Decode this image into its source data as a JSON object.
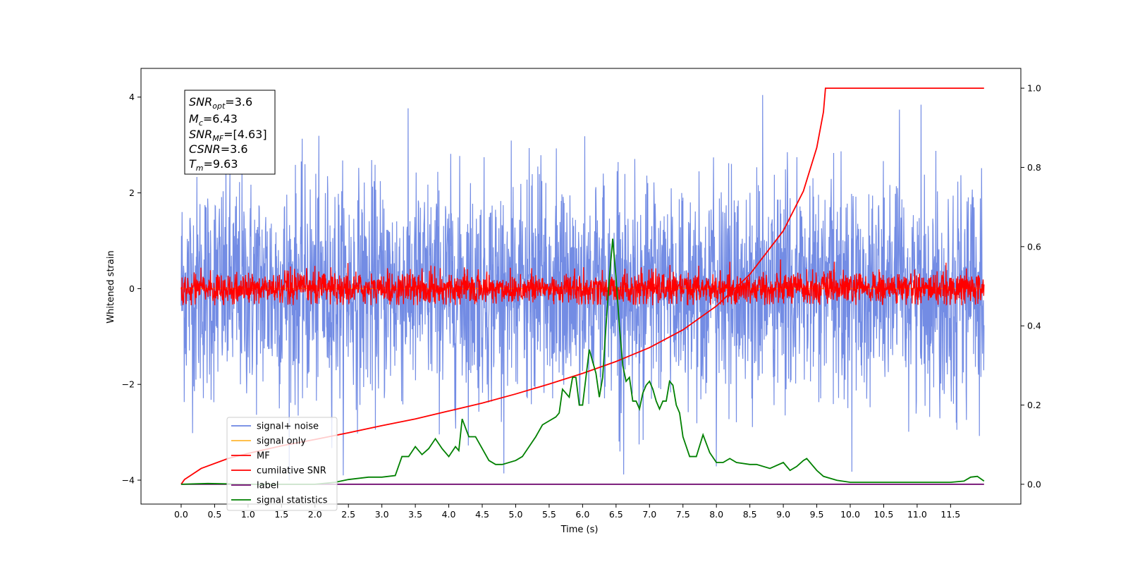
{
  "chart_data": {
    "type": "line",
    "title": "",
    "xlabel": "Time (s)",
    "ylabel": "Whitened strain",
    "xlim": [
      -0.6,
      12.55
    ],
    "ylim": [
      -4.5,
      4.6
    ],
    "y2lim": [
      -0.05,
      1.05
    ],
    "xticks": [
      "0.0",
      "0.5",
      "1.0",
      "1.5",
      "2.0",
      "2.5",
      "3.0",
      "3.5",
      "4.0",
      "4.5",
      "5.0",
      "5.5",
      "6.0",
      "6.5",
      "7.0",
      "7.5",
      "8.0",
      "8.5",
      "9.0",
      "9.5",
      "10.0",
      "10.5",
      "11.0",
      "11.5"
    ],
    "yticks": [
      "-4",
      "-2",
      "0",
      "2",
      "4"
    ],
    "y2ticks": [
      "0.0",
      "0.2",
      "0.4",
      "0.6",
      "0.8",
      "1.0"
    ],
    "legend_position": "lower-left",
    "grid": false,
    "colors": {
      "signal_noise": "#6b86e3",
      "signal_only": "#ffb733",
      "mf": "#ff0000",
      "cumulative": "#ff0000",
      "label": "#6a006a",
      "statistics": "#008000"
    },
    "series": [
      {
        "name": "signal+ noise",
        "axis": "left",
        "band": {
          "x_start": 0.0,
          "x_end": 12.0,
          "typical_min": -2.6,
          "typical_max": 2.6,
          "spike_max": 4.2,
          "spike_min": -4.1
        }
      },
      {
        "name": "signal only",
        "axis": "left",
        "x": [
          0.0,
          12.0
        ],
        "y": [
          0.0,
          0.0
        ]
      },
      {
        "name": "MF",
        "axis": "left",
        "band": {
          "x_start": 0.0,
          "x_end": 12.0,
          "typical_min": -0.3,
          "typical_max": 0.4,
          "spike_max": 1.0,
          "spike_min": -0.35
        }
      },
      {
        "name": "cumilative SNR",
        "axis": "right",
        "x": [
          0.0,
          0.05,
          0.3,
          0.7,
          1.0,
          1.5,
          2.0,
          2.5,
          3.0,
          3.5,
          4.0,
          4.5,
          5.0,
          5.5,
          6.0,
          6.5,
          7.0,
          7.5,
          8.0,
          8.5,
          9.0,
          9.3,
          9.5,
          9.6,
          9.63,
          12.0
        ],
        "y": [
          0.0,
          0.012,
          0.04,
          0.065,
          0.078,
          0.097,
          0.113,
          0.13,
          0.148,
          0.165,
          0.185,
          0.205,
          0.228,
          0.253,
          0.28,
          0.31,
          0.345,
          0.39,
          0.45,
          0.53,
          0.64,
          0.74,
          0.85,
          0.94,
          1.0,
          1.0
        ]
      },
      {
        "name": "label",
        "axis": "right",
        "x": [
          0.0,
          12.0
        ],
        "y": [
          0.0,
          0.0
        ]
      },
      {
        "name": "signal statistics",
        "axis": "right",
        "x": [
          0.0,
          0.4,
          1.0,
          1.5,
          2.0,
          2.3,
          2.5,
          2.8,
          3.0,
          3.2,
          3.3,
          3.4,
          3.5,
          3.6,
          3.7,
          3.8,
          3.9,
          4.0,
          4.1,
          4.15,
          4.2,
          4.3,
          4.4,
          4.5,
          4.6,
          4.7,
          4.8,
          5.0,
          5.1,
          5.3,
          5.4,
          5.5,
          5.6,
          5.65,
          5.7,
          5.8,
          5.85,
          5.9,
          5.95,
          6.0,
          6.05,
          6.1,
          6.15,
          6.2,
          6.25,
          6.3,
          6.35,
          6.4,
          6.45,
          6.5,
          6.55,
          6.6,
          6.65,
          6.7,
          6.75,
          6.8,
          6.85,
          6.9,
          6.95,
          7.0,
          7.05,
          7.1,
          7.15,
          7.2,
          7.25,
          7.3,
          7.35,
          7.4,
          7.45,
          7.5,
          7.6,
          7.7,
          7.8,
          7.9,
          8.0,
          8.1,
          8.2,
          8.3,
          8.5,
          8.6,
          8.8,
          9.0,
          9.1,
          9.2,
          9.3,
          9.35,
          9.5,
          9.6,
          9.8,
          10.0,
          10.5,
          11.0,
          11.5,
          11.7,
          11.8,
          11.9,
          12.0
        ],
        "y": [
          0.0,
          0.002,
          0.0,
          0.0,
          0.0,
          0.005,
          0.012,
          0.018,
          0.018,
          0.022,
          0.07,
          0.07,
          0.095,
          0.075,
          0.09,
          0.115,
          0.09,
          0.07,
          0.095,
          0.085,
          0.165,
          0.12,
          0.12,
          0.09,
          0.06,
          0.05,
          0.05,
          0.06,
          0.07,
          0.12,
          0.15,
          0.16,
          0.17,
          0.18,
          0.24,
          0.22,
          0.27,
          0.27,
          0.2,
          0.2,
          0.27,
          0.34,
          0.31,
          0.28,
          0.22,
          0.27,
          0.4,
          0.52,
          0.62,
          0.52,
          0.4,
          0.3,
          0.26,
          0.27,
          0.21,
          0.21,
          0.19,
          0.23,
          0.25,
          0.26,
          0.24,
          0.21,
          0.19,
          0.21,
          0.21,
          0.26,
          0.25,
          0.2,
          0.18,
          0.12,
          0.07,
          0.07,
          0.125,
          0.08,
          0.055,
          0.055,
          0.065,
          0.055,
          0.05,
          0.05,
          0.04,
          0.055,
          0.035,
          0.045,
          0.06,
          0.065,
          0.035,
          0.02,
          0.01,
          0.005,
          0.005,
          0.005,
          0.005,
          0.008,
          0.018,
          0.02,
          0.008
        ]
      }
    ]
  },
  "info_box": {
    "snr_opt_main": "SNR",
    "snr_opt_sub": "opt",
    "snr_opt_value": "=3.6",
    "mc_main": "M",
    "mc_sub": "c",
    "mc_value": "=6.43",
    "snr_mf_main": "SNR",
    "snr_mf_sub": "MF",
    "snr_mf_value": "=[4.63]",
    "csnr_main": "CSNR",
    "csnr_value": "=3.6",
    "tm_main": "T",
    "tm_sub": "m",
    "tm_value": "=9.63"
  }
}
